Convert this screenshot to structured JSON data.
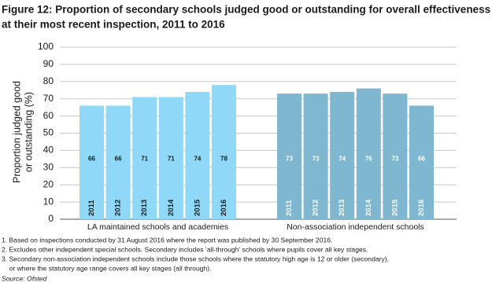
{
  "chart_data": {
    "type": "bar",
    "title": [
      "Figure 12:  Proportion of secondary schools judged good or outstanding for overall effectiveness",
      "at their most recent inspection, 2011 to 2016"
    ],
    "y_label": [
      "Proportion judged good",
      "or outstanding (%)"
    ],
    "ylim": [
      0,
      100
    ],
    "yticks": [
      0,
      10,
      20,
      30,
      40,
      50,
      60,
      70,
      80,
      90,
      100
    ],
    "grid": true,
    "groups": [
      {
        "name": "LA maintained schools and academies",
        "color": "#8fd8f7",
        "label_color": "#1a1a1a",
        "categories": [
          "2011",
          "2012",
          "2013",
          "2014",
          "2015",
          "2016"
        ],
        "values": [
          66,
          66,
          71,
          71,
          74,
          78
        ]
      },
      {
        "name": "Non-association independent schools",
        "color": "#7fb6d0",
        "label_color": "#ffffff",
        "categories": [
          "2011",
          "2012",
          "2013",
          "2014",
          "2015",
          "2016"
        ],
        "values": [
          73,
          73,
          74,
          76,
          73,
          66
        ]
      }
    ],
    "notes": [
      "1. Based on inspections conducted by 31 August 2016 where the report was published by 30 September 2016.",
      "2. Excludes other independent special schools. Secondary includes ‘all-through’ schools where pupils cover all key stages.",
      "3. Secondary non-association independent schools include those schools where the statutory high age is 12 or older (secondary),",
      "    or where the statutory age range covers all key stages (all through)."
    ],
    "source": "Source: Ofsted"
  }
}
